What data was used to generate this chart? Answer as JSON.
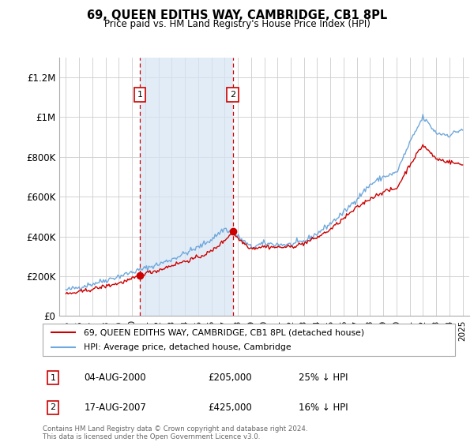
{
  "title": "69, QUEEN EDITHS WAY, CAMBRIDGE, CB1 8PL",
  "subtitle": "Price paid vs. HM Land Registry's House Price Index (HPI)",
  "xlim": [
    1994.5,
    2025.5
  ],
  "ylim": [
    0,
    1300000
  ],
  "yticks": [
    0,
    200000,
    400000,
    600000,
    800000,
    1000000,
    1200000
  ],
  "ytick_labels": [
    "£0",
    "£200K",
    "£400K",
    "£600K",
    "£800K",
    "£1M",
    "£1.2M"
  ],
  "sale1_date": 2000.59,
  "sale1_price": 205000,
  "sale1_label": "1",
  "sale1_text": "04-AUG-2000",
  "sale1_pct": "25% ↓ HPI",
  "sale2_date": 2007.62,
  "sale2_price": 425000,
  "sale2_label": "2",
  "sale2_text": "17-AUG-2007",
  "sale2_pct": "16% ↓ HPI",
  "hpi_color": "#6fa8dc",
  "price_color": "#cc0000",
  "annotation_box_color": "#cc0000",
  "vline_color": "#cc0000",
  "shade_color": "#d6e4f5",
  "legend_label_price": "69, QUEEN EDITHS WAY, CAMBRIDGE, CB1 8PL (detached house)",
  "legend_label_hpi": "HPI: Average price, detached house, Cambridge",
  "footer": "Contains HM Land Registry data © Crown copyright and database right 2024.\nThis data is licensed under the Open Government Licence v3.0.",
  "xticks": [
    1995,
    1996,
    1997,
    1998,
    1999,
    2000,
    2001,
    2002,
    2003,
    2004,
    2005,
    2006,
    2007,
    2008,
    2009,
    2010,
    2011,
    2012,
    2013,
    2014,
    2015,
    2016,
    2017,
    2018,
    2019,
    2020,
    2021,
    2022,
    2023,
    2024,
    2025
  ],
  "hpi_anchors_x": [
    1995,
    1996,
    1997,
    1998,
    1999,
    2000,
    2001,
    2002,
    2003,
    2004,
    2005,
    2006,
    2007,
    2008,
    2009,
    2010,
    2011,
    2012,
    2013,
    2014,
    2015,
    2016,
    2017,
    2018,
    2019,
    2020,
    2021,
    2022,
    2023,
    2024,
    2025
  ],
  "hpi_anchors_y": [
    130000,
    145000,
    162000,
    180000,
    200000,
    220000,
    240000,
    260000,
    285000,
    315000,
    345000,
    385000,
    440000,
    400000,
    345000,
    365000,
    360000,
    358000,
    375000,
    415000,
    465000,
    520000,
    590000,
    660000,
    700000,
    720000,
    870000,
    1000000,
    920000,
    910000,
    940000
  ],
  "price_anchors_x": [
    1995,
    1996,
    1997,
    1998,
    1999,
    2000,
    2000.59,
    2001,
    2002,
    2003,
    2004,
    2005,
    2006,
    2007,
    2007.62,
    2008,
    2009,
    2010,
    2011,
    2012,
    2013,
    2014,
    2015,
    2016,
    2017,
    2018,
    2019,
    2020,
    2021,
    2022,
    2023,
    2024,
    2025
  ],
  "price_anchors_y": [
    110000,
    120000,
    135000,
    150000,
    165000,
    185000,
    205000,
    215000,
    230000,
    255000,
    275000,
    295000,
    325000,
    380000,
    425000,
    390000,
    340000,
    350000,
    345000,
    348000,
    365000,
    395000,
    435000,
    490000,
    545000,
    590000,
    625000,
    640000,
    760000,
    860000,
    790000,
    775000,
    760000
  ]
}
